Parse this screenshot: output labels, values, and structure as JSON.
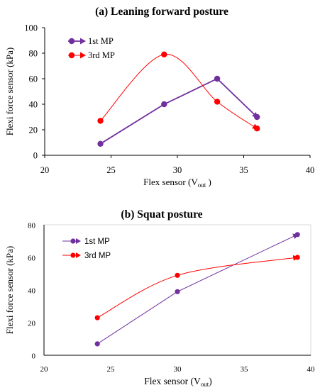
{
  "chart_data": [
    {
      "type": "line",
      "title": "(a)  Leaning forward posture",
      "xlabel": "Flex sensor (V",
      "xlabel_sub": "out",
      "xlabel_close": " )",
      "ylabel": "Flexi force sensor (kPa)",
      "xlim": [
        20,
        40
      ],
      "ylim": [
        0,
        100
      ],
      "xticks": [
        20,
        25,
        30,
        35,
        40
      ],
      "yticks": [
        0,
        20,
        40,
        60,
        80,
        100
      ],
      "grid": false,
      "legend_position": "top-left",
      "series": [
        {
          "name": "1st MP",
          "color": "#7030A0",
          "x": [
            24.2,
            29.0,
            33.0,
            36.0
          ],
          "y": [
            9,
            40,
            60,
            30
          ]
        },
        {
          "name": "3rd MP",
          "color": "#FF0000",
          "x": [
            24.2,
            29.0,
            33.0,
            36.0
          ],
          "y": [
            27,
            79,
            42,
            21
          ]
        }
      ]
    },
    {
      "type": "line",
      "title": "(b)  Squat posture",
      "xlabel": "Flex sensor (V",
      "xlabel_sub": "out",
      "xlabel_close": ")",
      "ylabel": "Flexi force sensor (kPa)",
      "xlim": [
        20,
        40
      ],
      "ylim": [
        0,
        80
      ],
      "xticks": [
        20,
        25,
        30,
        35,
        40
      ],
      "yticks": [
        0,
        20,
        40,
        60,
        80
      ],
      "grid": false,
      "legend_position": "top-left",
      "series": [
        {
          "name": "1st MP",
          "color": "#7030A0",
          "x": [
            24.0,
            30.0,
            39.0
          ],
          "y": [
            7,
            39,
            74
          ]
        },
        {
          "name": "3rd MP",
          "color": "#FF0000",
          "x": [
            24.0,
            30.0,
            39.0
          ],
          "y": [
            23,
            49,
            60
          ]
        }
      ]
    }
  ]
}
